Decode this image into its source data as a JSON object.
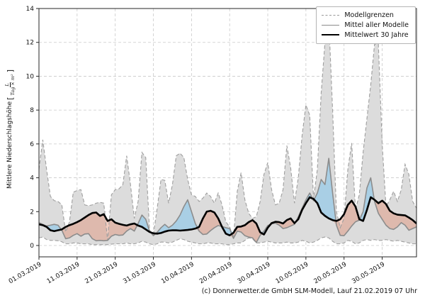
{
  "footer": {
    "credit": "(c) Donnerwetter.de GmbH SLM-Modell, Lauf 21.02.2019 07 Uhr"
  },
  "y_axis": {
    "label_main": "Mittlere Niederschlagshöhe",
    "bracket_open": "[",
    "unit_numerator": "L",
    "unit_denominator": "Tag × m²",
    "bracket_close": "]"
  },
  "chart_data": {
    "type": "line",
    "title": "",
    "xlabel": "",
    "ylabel": "Mittlere Niederschlagshöhe [L/(Tag × m²)]",
    "ylim": [
      -0.7,
      14
    ],
    "y_ticks": [
      0,
      2,
      4,
      6,
      8,
      10,
      12,
      14
    ],
    "x_tick_days": [
      0,
      10,
      20,
      30,
      40,
      50,
      60,
      70,
      80,
      90
    ],
    "x_tick_labels": [
      "01.03.2019",
      "11.03.2019",
      "21.03.2019",
      "31.03.2019",
      "10.04.2019",
      "20.04.2019",
      "30.04.2019",
      "10.05.2019",
      "20.05.2019",
      "30.05.2019"
    ],
    "x_start_date": "01.03.2019",
    "x_step_days": 1,
    "n_points": 100,
    "grid": true,
    "legend_position": "top-right",
    "legend": {
      "entries": [
        {
          "label": "Modellgrenzen",
          "style": "dashed-gray"
        },
        {
          "label": "Mittel aller Modelle",
          "style": "solid-gray"
        },
        {
          "label": "Mittelwert 30 Jahre",
          "style": "solid-black-thick"
        }
      ]
    },
    "colors": {
      "envelope_fill": "#dcdcdc",
      "bound_line": "#9e9e9e",
      "model_mean_line": "#8c8c8c",
      "climate_mean_line": "#000000",
      "above_normal_fill": "rgba(152,203,232,0.75)",
      "below_normal_fill": "rgba(225,135,107,0.42)",
      "grid_line": "#c9c9c9",
      "spine": "#262626"
    },
    "series": [
      {
        "name": "Modellgrenzen (obere Grenze)",
        "role": "upper",
        "style": "dashed",
        "values": [
          4.5,
          6.25,
          4.5,
          2.9,
          2.65,
          2.6,
          2.4,
          0.8,
          1.4,
          3.15,
          3.25,
          3.3,
          2.4,
          2.35,
          2.4,
          2.5,
          2.55,
          2.5,
          0.3,
          3.0,
          3.3,
          3.35,
          3.6,
          5.3,
          3.6,
          1.6,
          2.6,
          5.5,
          5.2,
          0.9,
          0.65,
          2.2,
          3.9,
          3.85,
          2.5,
          3.6,
          5.3,
          5.45,
          5.2,
          3.9,
          3.0,
          2.9,
          2.6,
          2.8,
          3.1,
          2.9,
          2.5,
          3.1,
          2.4,
          1.4,
          1.1,
          0.45,
          3.2,
          4.3,
          2.7,
          1.9,
          1.6,
          1.7,
          2.6,
          4.2,
          4.9,
          3.3,
          2.4,
          2.5,
          3.3,
          5.9,
          4.6,
          2.5,
          4.0,
          6.5,
          8.3,
          7.7,
          2.75,
          4.5,
          9.0,
          12.0,
          13.35,
          8.0,
          2.0,
          1.05,
          1.6,
          4.5,
          6.05,
          2.1,
          3.0,
          5.5,
          7.5,
          9.5,
          11.9,
          11.9,
          6.0,
          2.3,
          2.7,
          3.2,
          2.6,
          3.3,
          4.8,
          4.2,
          2.6,
          2.2
        ]
      },
      {
        "name": "Modellgrenzen (untere Grenze)",
        "role": "lower",
        "style": "dashed",
        "values": [
          0.45,
          0.5,
          0.35,
          0.3,
          0.3,
          0.28,
          0.22,
          0.1,
          0.1,
          0.15,
          0.15,
          0.1,
          0.1,
          0.1,
          0.05,
          0.05,
          0.05,
          0.05,
          0.05,
          0.08,
          0.1,
          0.1,
          0.1,
          0.15,
          0.1,
          0.1,
          0.15,
          0.25,
          0.2,
          0.1,
          0.05,
          0.1,
          0.2,
          0.2,
          0.15,
          0.2,
          0.3,
          0.4,
          0.35,
          0.25,
          0.2,
          0.15,
          0.1,
          0.1,
          0.15,
          0.15,
          0.1,
          0.1,
          0.1,
          0.05,
          0.05,
          0.1,
          0.15,
          0.15,
          0.3,
          0.45,
          0.4,
          0.15,
          0.15,
          0.2,
          0.25,
          0.2,
          0.15,
          0.15,
          0.15,
          0.2,
          0.15,
          0.15,
          0.2,
          0.3,
          0.25,
          0.15,
          0.2,
          0.3,
          0.45,
          0.5,
          0.45,
          0.25,
          0.1,
          0.1,
          0.15,
          0.3,
          0.25,
          0.1,
          0.15,
          0.3,
          0.35,
          0.3,
          0.35,
          0.3,
          0.3,
          0.35,
          0.3,
          0.25,
          0.3,
          0.25,
          0.2,
          0.15,
          0.1,
          0.1
        ]
      },
      {
        "name": "Mittel aller Modelle",
        "role": "model_mean",
        "style": "solid",
        "values": [
          1.35,
          1.25,
          1.15,
          1.2,
          1.25,
          1.2,
          0.9,
          0.4,
          0.45,
          0.6,
          0.7,
          0.55,
          0.68,
          0.7,
          0.4,
          0.28,
          0.3,
          0.28,
          0.3,
          0.55,
          0.65,
          0.6,
          0.62,
          0.85,
          1.0,
          0.85,
          1.3,
          1.8,
          1.55,
          0.85,
          0.58,
          0.78,
          1.05,
          1.25,
          1.05,
          1.2,
          1.45,
          1.8,
          2.3,
          2.7,
          2.0,
          1.3,
          0.85,
          0.65,
          0.68,
          0.88,
          1.05,
          1.18,
          1.12,
          1.05,
          1.0,
          0.42,
          0.85,
          0.8,
          0.58,
          0.5,
          0.45,
          0.18,
          0.6,
          0.85,
          1.18,
          1.28,
          1.32,
          1.2,
          1.0,
          1.05,
          1.15,
          1.25,
          1.7,
          2.2,
          2.7,
          3.1,
          2.65,
          3.1,
          3.9,
          3.6,
          5.15,
          3.1,
          1.2,
          0.6,
          0.58,
          0.85,
          1.15,
          1.4,
          1.5,
          2.0,
          3.4,
          4.0,
          2.6,
          1.9,
          1.55,
          1.2,
          1.0,
          0.95,
          1.1,
          1.35,
          1.2,
          0.9,
          1.0,
          1.1
        ]
      },
      {
        "name": "Mittelwert 30 Jahre",
        "role": "climate_mean",
        "style": "solid-thick",
        "values": [
          1.25,
          1.2,
          1.1,
          0.9,
          0.85,
          0.9,
          0.95,
          1.1,
          1.2,
          1.28,
          1.38,
          1.5,
          1.65,
          1.8,
          1.92,
          1.95,
          1.75,
          1.85,
          1.45,
          1.55,
          1.35,
          1.28,
          1.22,
          1.18,
          1.25,
          1.3,
          1.18,
          1.1,
          0.95,
          0.8,
          0.72,
          0.7,
          0.74,
          0.82,
          0.88,
          0.9,
          0.9,
          0.88,
          0.9,
          0.92,
          0.95,
          1.0,
          1.1,
          1.6,
          2.0,
          2.05,
          1.95,
          1.6,
          1.1,
          0.7,
          0.6,
          0.75,
          1.1,
          1.12,
          1.2,
          1.38,
          1.5,
          1.3,
          0.78,
          0.65,
          1.05,
          1.32,
          1.4,
          1.38,
          1.3,
          1.5,
          1.6,
          1.32,
          1.55,
          2.1,
          2.5,
          2.85,
          2.75,
          2.5,
          1.95,
          1.75,
          1.6,
          1.5,
          1.45,
          1.55,
          1.85,
          2.4,
          2.65,
          2.3,
          1.55,
          1.45,
          2.1,
          2.85,
          2.7,
          2.5,
          2.65,
          2.45,
          2.05,
          1.9,
          1.82,
          1.8,
          1.78,
          1.65,
          1.5,
          1.3
        ]
      }
    ]
  }
}
